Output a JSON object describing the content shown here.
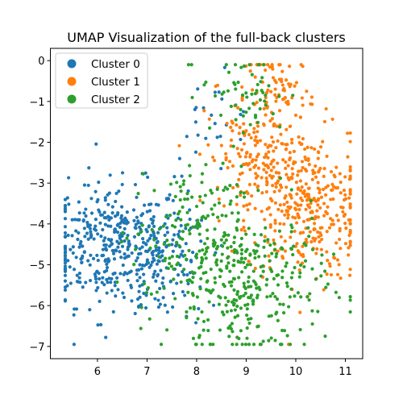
{
  "chart_data": {
    "type": "scatter",
    "title": "UMAP Visualization of the full-back clusters",
    "xlabel": "",
    "ylabel": "",
    "xlim": [
      5.05,
      11.35
    ],
    "ylim": [
      -7.3,
      0.3
    ],
    "xticks": [
      6,
      7,
      8,
      9,
      10,
      11
    ],
    "yticks": [
      0,
      -1,
      -2,
      -3,
      -4,
      -5,
      -6,
      -7
    ],
    "legend_position": "top-left",
    "series": [
      {
        "name": "Cluster 0",
        "color": "#1f77b4",
        "clusters": [
          {
            "cx": 6.3,
            "cy": -4.5,
            "sx": 0.75,
            "sy": 0.75,
            "n": 380
          },
          {
            "cx": 7.3,
            "cy": -5.0,
            "sx": 0.5,
            "sy": 0.7,
            "n": 110
          },
          {
            "cx": 8.3,
            "cy": -1.6,
            "sx": 0.45,
            "sy": 0.6,
            "n": 25
          }
        ]
      },
      {
        "name": "Cluster 1",
        "color": "#ff7f0e",
        "clusters": [
          {
            "cx": 10.2,
            "cy": -3.6,
            "sx": 0.6,
            "sy": 0.9,
            "n": 330
          },
          {
            "cx": 9.3,
            "cy": -2.4,
            "sx": 0.55,
            "sy": 0.8,
            "n": 180
          },
          {
            "cx": 9.7,
            "cy": -0.7,
            "sx": 0.35,
            "sy": 0.45,
            "n": 70
          }
        ]
      },
      {
        "name": "Cluster 2",
        "color": "#2ca02c",
        "clusters": [
          {
            "cx": 9.0,
            "cy": -5.5,
            "sx": 0.8,
            "sy": 0.9,
            "n": 330
          },
          {
            "cx": 7.8,
            "cy": -4.2,
            "sx": 0.55,
            "sy": 0.8,
            "n": 140
          },
          {
            "cx": 9.0,
            "cy": -0.8,
            "sx": 0.45,
            "sy": 0.6,
            "n": 60
          }
        ]
      }
    ]
  }
}
